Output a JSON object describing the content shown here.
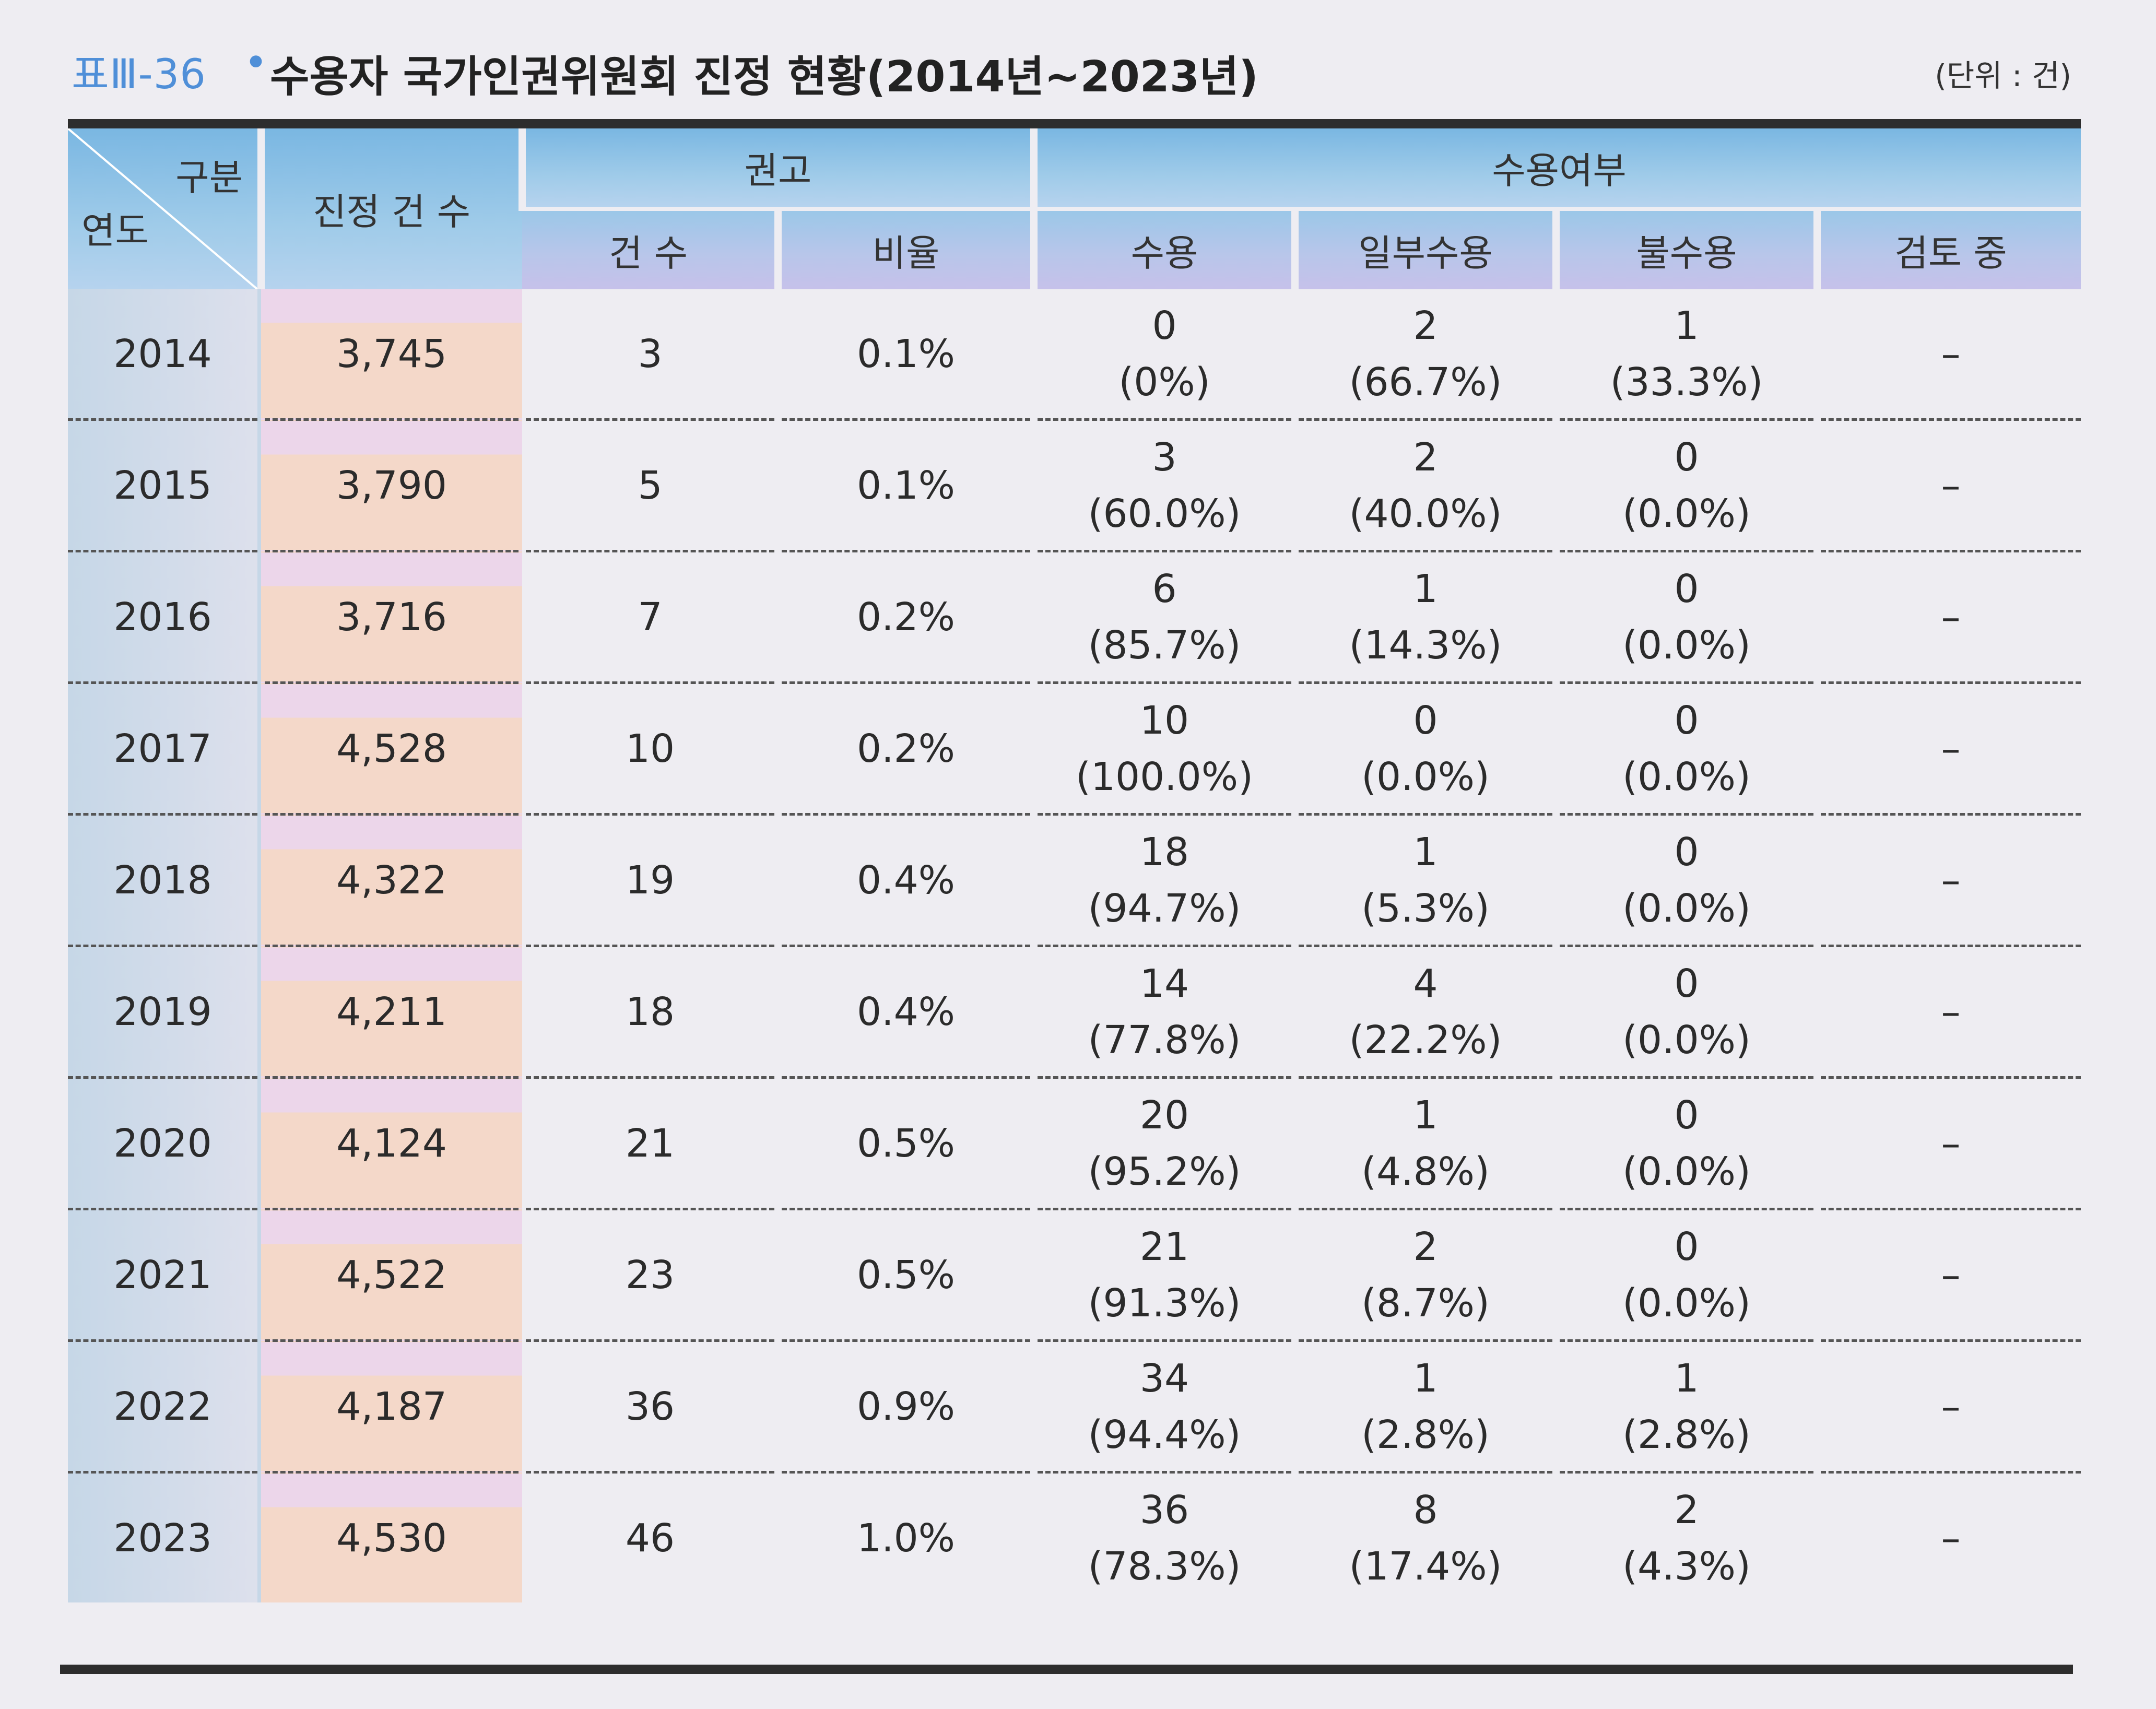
{
  "title": {
    "label": "표Ⅲ-36",
    "dot": "•",
    "text": "수용자 국가인권위원회 진정 현황(2014년~2023년)",
    "unit": "(단위 : 건)"
  },
  "colors": {
    "title_accent": "#4f8fd8",
    "header_blue": "#7ab7e2",
    "header_lavender": "#c6c1ea",
    "year_column": "#c6d7e7",
    "count_column": "#f4d8c9"
  },
  "header": {
    "gubun": "구분",
    "year": "연도",
    "complaints": "진정 건 수",
    "recommendation": "권고",
    "rec_count": "건 수",
    "rec_ratio": "비율",
    "acceptance": "수용여부",
    "accepted": "수용",
    "partial": "일부수용",
    "rejected": "불수용",
    "reviewing": "검토 중"
  },
  "rows": [
    {
      "year": "2014",
      "complaints": "3,745",
      "rec_count": "3",
      "rec_ratio": "0.1%",
      "accepted": "0",
      "accepted_pct": "(0%)",
      "partial": "2",
      "partial_pct": "(66.7%)",
      "rejected": "1",
      "rejected_pct": "(33.3%)",
      "reviewing": "–"
    },
    {
      "year": "2015",
      "complaints": "3,790",
      "rec_count": "5",
      "rec_ratio": "0.1%",
      "accepted": "3",
      "accepted_pct": "(60.0%)",
      "partial": "2",
      "partial_pct": "(40.0%)",
      "rejected": "0",
      "rejected_pct": "(0.0%)",
      "reviewing": "–"
    },
    {
      "year": "2016",
      "complaints": "3,716",
      "rec_count": "7",
      "rec_ratio": "0.2%",
      "accepted": "6",
      "accepted_pct": "(85.7%)",
      "partial": "1",
      "partial_pct": "(14.3%)",
      "rejected": "0",
      "rejected_pct": "(0.0%)",
      "reviewing": "–"
    },
    {
      "year": "2017",
      "complaints": "4,528",
      "rec_count": "10",
      "rec_ratio": "0.2%",
      "accepted": "10",
      "accepted_pct": "(100.0%)",
      "partial": "0",
      "partial_pct": "(0.0%)",
      "rejected": "0",
      "rejected_pct": "(0.0%)",
      "reviewing": "–"
    },
    {
      "year": "2018",
      "complaints": "4,322",
      "rec_count": "19",
      "rec_ratio": "0.4%",
      "accepted": "18",
      "accepted_pct": "(94.7%)",
      "partial": "1",
      "partial_pct": "(5.3%)",
      "rejected": "0",
      "rejected_pct": "(0.0%)",
      "reviewing": "–"
    },
    {
      "year": "2019",
      "complaints": "4,211",
      "rec_count": "18",
      "rec_ratio": "0.4%",
      "accepted": "14",
      "accepted_pct": "(77.8%)",
      "partial": "4",
      "partial_pct": "(22.2%)",
      "rejected": "0",
      "rejected_pct": "(0.0%)",
      "reviewing": "–"
    },
    {
      "year": "2020",
      "complaints": "4,124",
      "rec_count": "21",
      "rec_ratio": "0.5%",
      "accepted": "20",
      "accepted_pct": "(95.2%)",
      "partial": "1",
      "partial_pct": "(4.8%)",
      "rejected": "0",
      "rejected_pct": "(0.0%)",
      "reviewing": "–"
    },
    {
      "year": "2021",
      "complaints": "4,522",
      "rec_count": "23",
      "rec_ratio": "0.5%",
      "accepted": "21",
      "accepted_pct": "(91.3%)",
      "partial": "2",
      "partial_pct": "(8.7%)",
      "rejected": "0",
      "rejected_pct": "(0.0%)",
      "reviewing": "–"
    },
    {
      "year": "2022",
      "complaints": "4,187",
      "rec_count": "36",
      "rec_ratio": "0.9%",
      "accepted": "34",
      "accepted_pct": "(94.4%)",
      "partial": "1",
      "partial_pct": "(2.8%)",
      "rejected": "1",
      "rejected_pct": "(2.8%)",
      "reviewing": "–"
    },
    {
      "year": "2023",
      "complaints": "4,530",
      "rec_count": "46",
      "rec_ratio": "1.0%",
      "accepted": "36",
      "accepted_pct": "(78.3%)",
      "partial": "8",
      "partial_pct": "(17.4%)",
      "rejected": "2",
      "rejected_pct": "(4.3%)",
      "reviewing": "–"
    }
  ]
}
